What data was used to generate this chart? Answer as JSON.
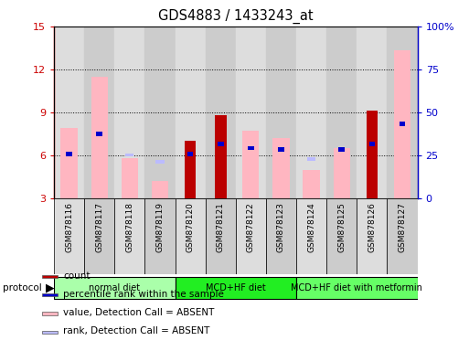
{
  "title": "GDS4883 / 1433243_at",
  "samples": [
    "GSM878116",
    "GSM878117",
    "GSM878118",
    "GSM878119",
    "GSM878120",
    "GSM878121",
    "GSM878122",
    "GSM878123",
    "GSM878124",
    "GSM878125",
    "GSM878126",
    "GSM878127"
  ],
  "value_absent": [
    7.9,
    11.5,
    5.8,
    4.2,
    null,
    null,
    7.7,
    7.2,
    5.0,
    6.5,
    null,
    13.3
  ],
  "rank_absent": [
    null,
    null,
    5.9,
    5.4,
    null,
    null,
    null,
    null,
    5.6,
    null,
    null,
    null
  ],
  "count": [
    null,
    null,
    null,
    null,
    7.0,
    8.8,
    null,
    null,
    null,
    null,
    9.1,
    null
  ],
  "percentile": [
    6.1,
    7.5,
    null,
    null,
    6.1,
    6.8,
    6.5,
    6.4,
    null,
    6.4,
    6.8,
    8.2
  ],
  "percentile_right_scale": [
    34,
    42,
    null,
    null,
    34,
    38,
    36,
    35,
    null,
    35,
    38,
    46
  ],
  "ylim_left": [
    3,
    15
  ],
  "ylim_right": [
    0,
    100
  ],
  "yticks_left": [
    3,
    6,
    9,
    12,
    15
  ],
  "yticks_right": [
    0,
    25,
    50,
    75,
    100
  ],
  "ytick_labels_right": [
    "0",
    "25",
    "50",
    "75",
    "100%"
  ],
  "groups": [
    {
      "label": "normal diet",
      "start": 0,
      "end": 4,
      "color": "#AAFFAA"
    },
    {
      "label": "MCD+HF diet",
      "start": 4,
      "end": 8,
      "color": "#22EE22"
    },
    {
      "label": "MCD+HF diet with metformin",
      "start": 8,
      "end": 12,
      "color": "#66FF66"
    }
  ],
  "color_value_absent": "#FFB6C1",
  "color_rank_absent": "#BBBBFF",
  "color_count": "#BB0000",
  "color_percentile": "#0000CC",
  "background_color": "#ffffff",
  "left_axis_color": "#CC0000",
  "right_axis_color": "#0000CC",
  "col_bg_even": "#DDDDDD",
  "col_bg_odd": "#CCCCCC"
}
